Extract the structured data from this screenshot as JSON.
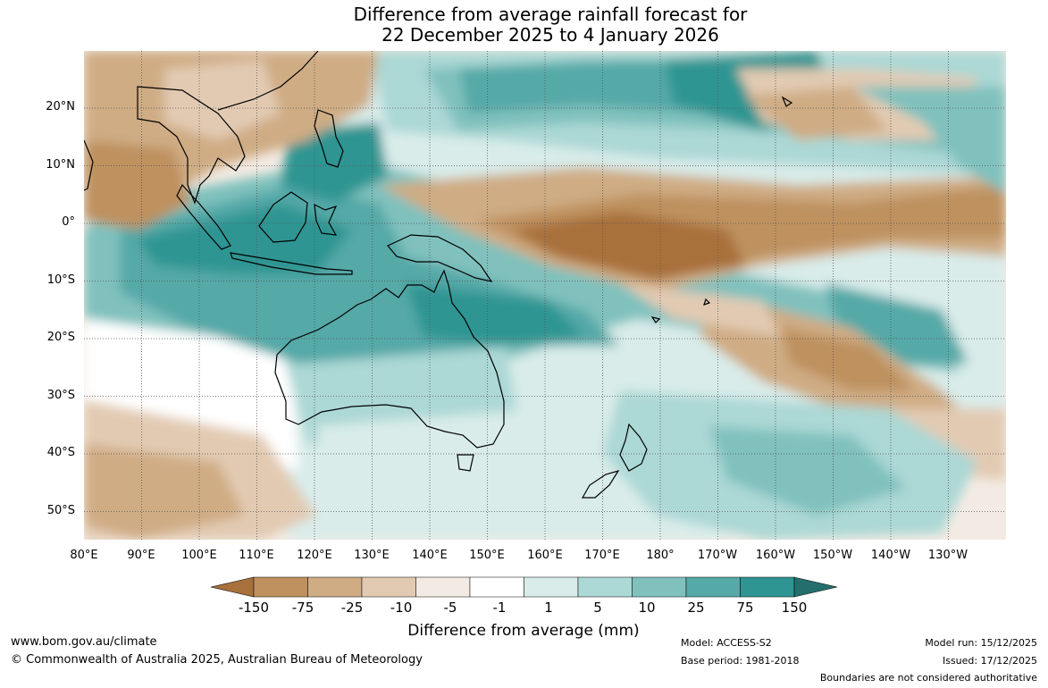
{
  "title": {
    "line1": "Difference from average rainfall forecast for",
    "line2": "22 December 2025 to 4 January 2026"
  },
  "latitude_labels": [
    "20°N",
    "10°N",
    "0°",
    "10°S",
    "20°S",
    "30°S",
    "40°S",
    "50°S"
  ],
  "longitude_labels": [
    "80°E",
    "90°E",
    "100°E",
    "110°E",
    "120°E",
    "130°E",
    "140°E",
    "150°E",
    "160°E",
    "170°E",
    "180°",
    "170°W",
    "160°W",
    "150°W",
    "140°W",
    "130°W"
  ],
  "legend": {
    "title": "Difference from average (mm)",
    "bins": [
      "-150",
      "-75",
      "-25",
      "-10",
      "-5",
      "-1",
      "1",
      "5",
      "10",
      "25",
      "75",
      "150"
    ],
    "colors": [
      "#a8703b",
      "#be915f",
      "#cfac84",
      "#e2cab2",
      "#f3ebe3",
      "#ffffff",
      "#d9ecea",
      "#acd8d5",
      "#80c1bd",
      "#55a9a7",
      "#2e9592",
      "#246f6d"
    ]
  },
  "footer": {
    "website": "www.bom.gov.au/climate",
    "copyright": "© Commonwealth of Australia 2025, Australian Bureau of Meteorology",
    "model": "Model: ACCESS-S2",
    "base_period": "Base period: 1981-2018",
    "model_run": "Model run: 15/12/2025",
    "issued": "Issued: 17/12/2025",
    "disclaimer": "Boundaries are not considered authoritative"
  }
}
